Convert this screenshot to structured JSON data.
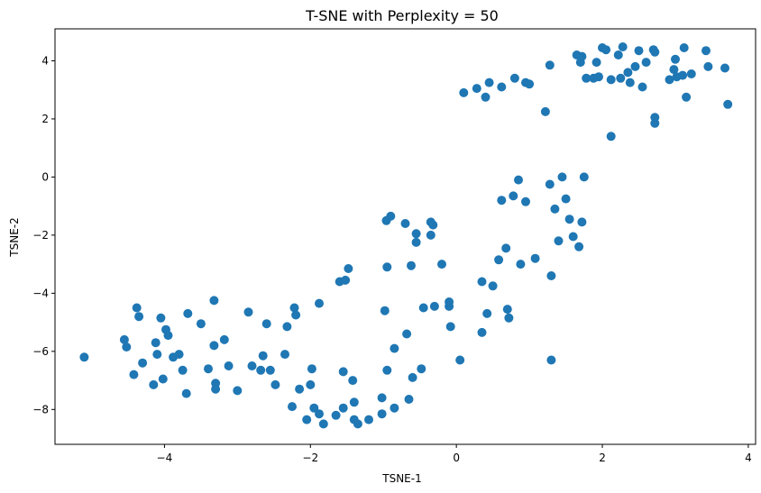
{
  "chart_data": {
    "type": "scatter",
    "title": "T-SNE with Perplexity = 50",
    "xlabel": "TSNE-1",
    "ylabel": "TSNE-2",
    "xlim": [
      -5.5,
      4.1
    ],
    "ylim": [
      -9.2,
      5.1
    ],
    "xticks": [
      -4,
      -2,
      0,
      2,
      4
    ],
    "yticks": [
      -8,
      -6,
      -4,
      -2,
      0,
      2,
      4
    ],
    "xtick_labels": [
      "−4",
      "−2",
      "0",
      "2",
      "4"
    ],
    "ytick_labels": [
      "−8",
      "−6",
      "−4",
      "−2",
      "0",
      "2",
      "4"
    ],
    "grid": false,
    "marker_color": "#1f77b4",
    "points": [
      [
        -5.1,
        -6.2
      ],
      [
        -4.55,
        -5.6
      ],
      [
        -4.52,
        -5.85
      ],
      [
        -4.42,
        -6.8
      ],
      [
        -4.38,
        -4.5
      ],
      [
        -4.35,
        -4.8
      ],
      [
        -4.3,
        -6.4
      ],
      [
        -4.15,
        -7.15
      ],
      [
        -4.12,
        -5.7
      ],
      [
        -4.1,
        -6.1
      ],
      [
        -4.05,
        -4.85
      ],
      [
        -4.02,
        -6.95
      ],
      [
        -3.98,
        -5.25
      ],
      [
        -3.95,
        -5.45
      ],
      [
        -3.88,
        -6.2
      ],
      [
        -3.8,
        -6.1
      ],
      [
        -3.75,
        -6.65
      ],
      [
        -3.7,
        -7.45
      ],
      [
        -3.68,
        -4.7
      ],
      [
        -3.5,
        -5.05
      ],
      [
        -3.4,
        -6.6
      ],
      [
        -3.32,
        -4.25
      ],
      [
        -3.32,
        -5.8
      ],
      [
        -3.3,
        -7.1
      ],
      [
        -3.3,
        -7.3
      ],
      [
        -3.18,
        -5.6
      ],
      [
        -3.12,
        -6.5
      ],
      [
        -3.0,
        -7.35
      ],
      [
        -2.85,
        -4.65
      ],
      [
        -2.8,
        -6.5
      ],
      [
        -2.68,
        -6.65
      ],
      [
        -2.65,
        -6.15
      ],
      [
        -2.6,
        -5.05
      ],
      [
        -2.55,
        -6.65
      ],
      [
        -2.48,
        -7.15
      ],
      [
        -2.35,
        -6.1
      ],
      [
        -2.32,
        -5.15
      ],
      [
        -2.25,
        -7.9
      ],
      [
        -2.22,
        -4.5
      ],
      [
        -2.2,
        -4.75
      ],
      [
        -2.15,
        -7.3
      ],
      [
        -2.05,
        -8.35
      ],
      [
        -2.0,
        -7.15
      ],
      [
        -1.98,
        -6.6
      ],
      [
        -1.95,
        -7.95
      ],
      [
        -1.88,
        -4.35
      ],
      [
        -1.88,
        -8.15
      ],
      [
        -1.82,
        -8.5
      ],
      [
        -1.65,
        -8.2
      ],
      [
        -1.6,
        -3.6
      ],
      [
        -1.55,
        -6.7
      ],
      [
        -1.55,
        -7.95
      ],
      [
        -1.52,
        -3.55
      ],
      [
        -1.48,
        -3.15
      ],
      [
        -1.42,
        -7.0
      ],
      [
        -1.4,
        -8.35
      ],
      [
        -1.4,
        -7.75
      ],
      [
        -1.35,
        -8.5
      ],
      [
        -1.2,
        -8.35
      ],
      [
        -1.02,
        -7.6
      ],
      [
        -1.02,
        -8.15
      ],
      [
        -0.98,
        -4.6
      ],
      [
        -0.96,
        -1.5
      ],
      [
        -0.95,
        -3.1
      ],
      [
        -0.95,
        -6.65
      ],
      [
        -0.9,
        -1.35
      ],
      [
        -0.85,
        -5.9
      ],
      [
        -0.85,
        -7.95
      ],
      [
        -0.7,
        -1.6
      ],
      [
        -0.68,
        -5.4
      ],
      [
        -0.65,
        -7.65
      ],
      [
        -0.62,
        -3.05
      ],
      [
        -0.6,
        -6.9
      ],
      [
        -0.55,
        -1.95
      ],
      [
        -0.55,
        -2.25
      ],
      [
        -0.48,
        -6.6
      ],
      [
        -0.45,
        -4.5
      ],
      [
        -0.35,
        -1.55
      ],
      [
        -0.35,
        -2.0
      ],
      [
        -0.32,
        -1.65
      ],
      [
        -0.3,
        -4.45
      ],
      [
        -0.2,
        -3.0
      ],
      [
        -0.1,
        -4.3
      ],
      [
        -0.1,
        -4.45
      ],
      [
        -0.08,
        -5.15
      ],
      [
        0.05,
        -6.3
      ],
      [
        0.1,
        2.9
      ],
      [
        0.28,
        3.05
      ],
      [
        0.35,
        -3.6
      ],
      [
        0.35,
        -5.35
      ],
      [
        0.4,
        2.75
      ],
      [
        0.42,
        -4.7
      ],
      [
        0.45,
        3.25
      ],
      [
        0.5,
        -3.75
      ],
      [
        0.58,
        -2.85
      ],
      [
        0.62,
        -0.8
      ],
      [
        0.62,
        3.1
      ],
      [
        0.68,
        -2.45
      ],
      [
        0.7,
        -4.55
      ],
      [
        0.72,
        -4.85
      ],
      [
        0.78,
        -0.65
      ],
      [
        0.8,
        3.4
      ],
      [
        0.85,
        -0.1
      ],
      [
        0.88,
        -3.0
      ],
      [
        0.95,
        -0.85
      ],
      [
        0.95,
        3.25
      ],
      [
        1.0,
        3.2
      ],
      [
        1.08,
        -2.8
      ],
      [
        1.22,
        2.25
      ],
      [
        1.28,
        3.85
      ],
      [
        1.28,
        -0.25
      ],
      [
        1.3,
        -3.4
      ],
      [
        1.3,
        -6.3
      ],
      [
        1.35,
        -1.1
      ],
      [
        1.4,
        -2.2
      ],
      [
        1.45,
        0.0
      ],
      [
        1.5,
        -0.75
      ],
      [
        1.55,
        -1.45
      ],
      [
        1.6,
        -2.05
      ],
      [
        1.65,
        4.2
      ],
      [
        1.68,
        -2.4
      ],
      [
        1.7,
        3.95
      ],
      [
        1.72,
        4.15
      ],
      [
        1.72,
        -1.55
      ],
      [
        1.75,
        0.0
      ],
      [
        1.78,
        3.4
      ],
      [
        1.88,
        3.4
      ],
      [
        1.92,
        3.95
      ],
      [
        1.95,
        3.45
      ],
      [
        2.0,
        4.45
      ],
      [
        2.05,
        4.38
      ],
      [
        2.12,
        3.35
      ],
      [
        2.12,
        1.4
      ],
      [
        2.22,
        4.2
      ],
      [
        2.25,
        3.4
      ],
      [
        2.28,
        4.48
      ],
      [
        2.35,
        3.6
      ],
      [
        2.38,
        3.25
      ],
      [
        2.45,
        3.8
      ],
      [
        2.5,
        4.35
      ],
      [
        2.55,
        3.1
      ],
      [
        2.6,
        3.95
      ],
      [
        2.7,
        4.38
      ],
      [
        2.72,
        4.3
      ],
      [
        2.72,
        2.05
      ],
      [
        2.72,
        1.85
      ],
      [
        2.92,
        3.35
      ],
      [
        2.98,
        3.7
      ],
      [
        3.0,
        4.05
      ],
      [
        3.02,
        3.45
      ],
      [
        3.1,
        3.5
      ],
      [
        3.12,
        4.45
      ],
      [
        3.15,
        2.75
      ],
      [
        3.22,
        3.55
      ],
      [
        3.42,
        4.35
      ],
      [
        3.45,
        3.8
      ],
      [
        3.68,
        3.75
      ],
      [
        3.72,
        2.5
      ]
    ]
  }
}
